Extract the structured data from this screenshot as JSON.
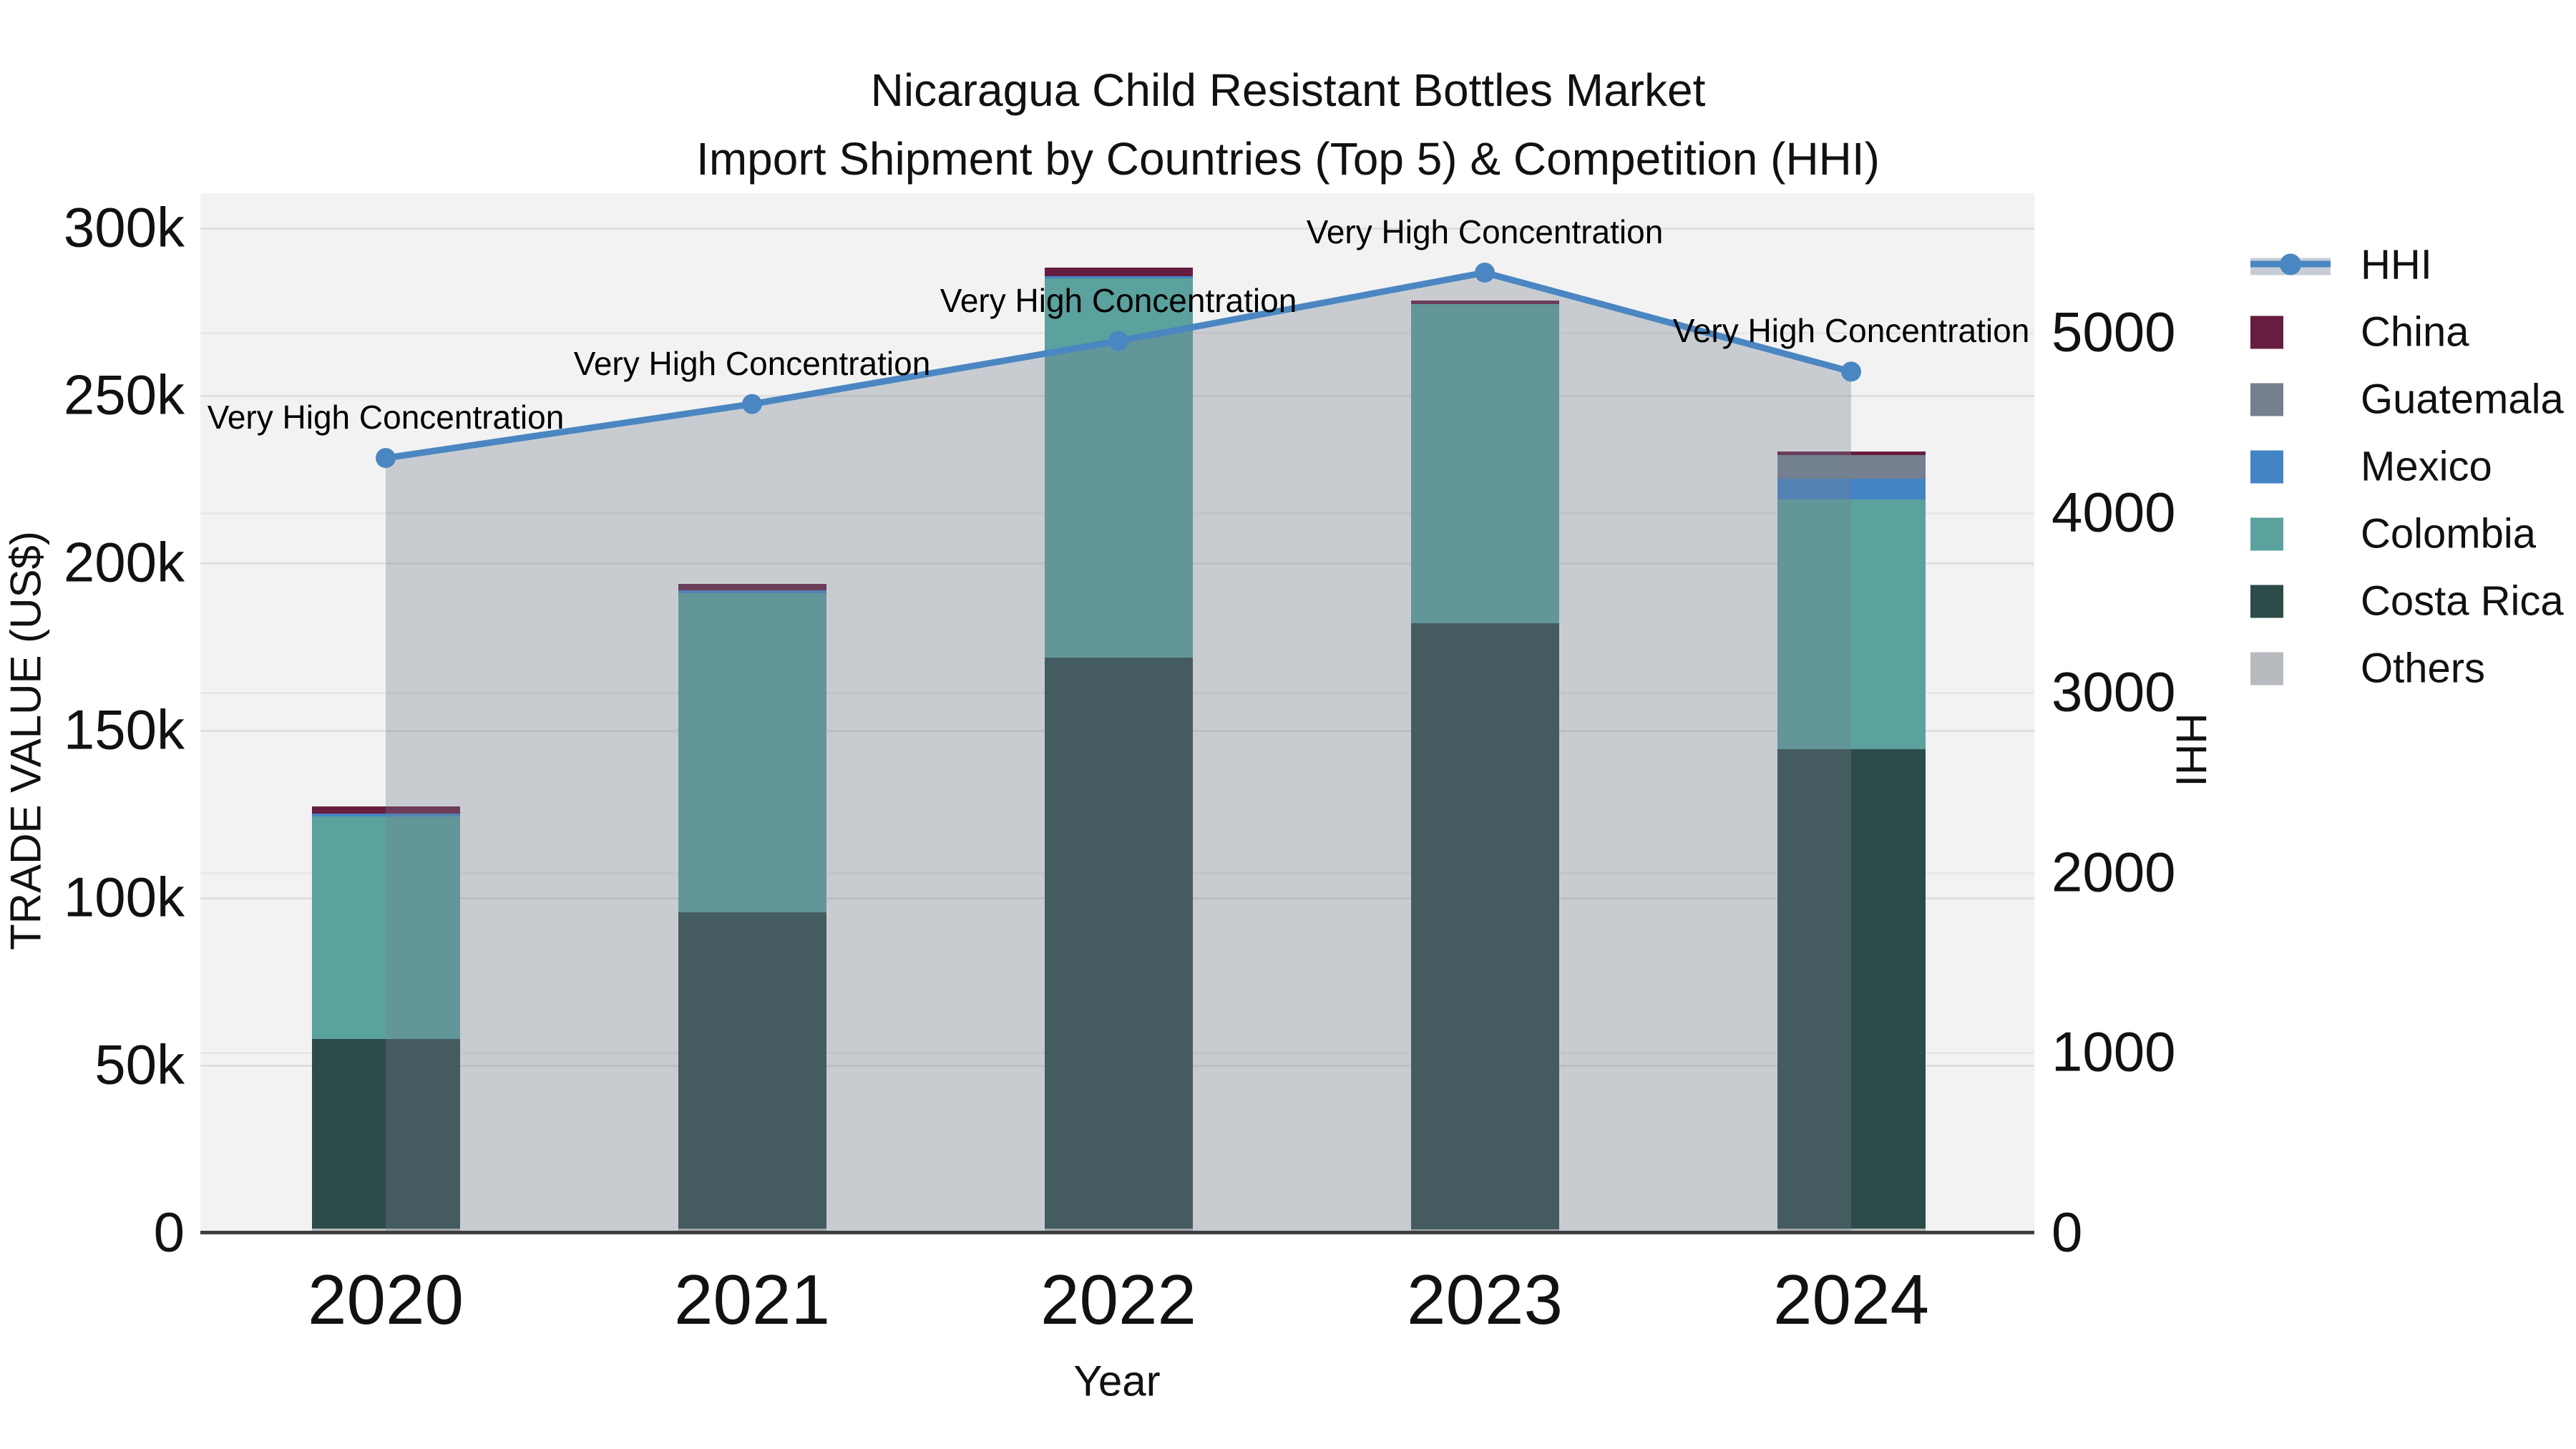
{
  "title": {
    "line1": "Nicaragua Child Resistant Bottles Market",
    "line2": "Import Shipment by Countries (Top 5) & Competition (HHI)"
  },
  "axes": {
    "left": {
      "title": "TRADE VALUE (US$)",
      "ticks": [
        "0",
        "50k",
        "100k",
        "150k",
        "200k",
        "250k",
        "300k"
      ],
      "tick_values_k": [
        0,
        50,
        100,
        150,
        200,
        250,
        300
      ]
    },
    "right": {
      "title": "HHI",
      "ticks": [
        "0",
        "1000",
        "2000",
        "3000",
        "4000",
        "5000"
      ],
      "tick_values": [
        0,
        1000,
        2000,
        3000,
        4000,
        5000
      ]
    },
    "x": {
      "title": "Year",
      "ticks": [
        "2020",
        "2021",
        "2022",
        "2023",
        "2024"
      ]
    }
  },
  "legend": {
    "items": [
      {
        "label": "HHI",
        "type": "line",
        "color": "#4A86C2"
      },
      {
        "label": "China",
        "type": "swatch",
        "color": "#671D40"
      },
      {
        "label": "Guatemala",
        "type": "swatch",
        "color": "#74808F"
      },
      {
        "label": "Mexico",
        "type": "swatch",
        "color": "#4384C4"
      },
      {
        "label": "Colombia",
        "type": "swatch",
        "color": "#5BA19E"
      },
      {
        "label": "Costa Rica",
        "type": "swatch",
        "color": "#2D4B49"
      },
      {
        "label": "Others",
        "type": "swatch",
        "color": "#B7BABE"
      }
    ]
  },
  "chart_data": {
    "type": "bar",
    "subtype": "stacked bars with secondary-axis line",
    "categories": [
      "2020",
      "2021",
      "2022",
      "2023",
      "2024"
    ],
    "bar_unit": "US$ thousands",
    "series": [
      {
        "name": "China",
        "color": "#671D40",
        "values": [
          2.2,
          1.9,
          2.5,
          1.0,
          1.1
        ]
      },
      {
        "name": "Guatemala",
        "color": "#74808F",
        "values": [
          0,
          0,
          0,
          0,
          7.1
        ]
      },
      {
        "name": "Mexico",
        "color": "#4384C4",
        "values": [
          0.7,
          0.9,
          0.6,
          0,
          6.2
        ]
      },
      {
        "name": "Colombia",
        "color": "#5BA19E",
        "values": [
          66.5,
          95.3,
          113.4,
          95.3,
          74.5
        ]
      },
      {
        "name": "Costa Rica",
        "color": "#2D4B49",
        "values": [
          56.6,
          94.5,
          170.5,
          181.0,
          143.3
        ]
      },
      {
        "name": "Others",
        "color": "#B7BABE",
        "values": [
          1.1,
          1.0,
          1.0,
          0.8,
          1.0
        ]
      }
    ],
    "stack_order_bottom_to_top": [
      "Others",
      "Costa Rica",
      "Colombia",
      "Mexico",
      "Guatemala",
      "China"
    ],
    "bar_totals_k": [
      127.1,
      193.6,
      288.0,
      278.1,
      233.2
    ],
    "line": {
      "name": "HHI",
      "color": "#4A86C2",
      "band_color": "#74808F",
      "band_opacity": 0.33,
      "values": [
        4300,
        4600,
        4950,
        5330,
        4780
      ],
      "annotation": "Very High Concentration"
    },
    "title": "Nicaragua Child Resistant Bottles Market Import Shipment by Countries (Top 5) & Competition (HHI)",
    "xlabel": "Year",
    "ylabel_left": "TRADE VALUE (US$)",
    "ylabel_right": "HHI",
    "ylim_left_k": [
      0,
      300
    ],
    "ylim_right": [
      0,
      5000
    ],
    "grid": true,
    "legend_position": "right",
    "colors": {
      "plot_background": "#F2F2F2",
      "page_background": "#FFFFFF",
      "gridline": "#DFDFDF",
      "axis_line": "#3F3F3F"
    }
  }
}
